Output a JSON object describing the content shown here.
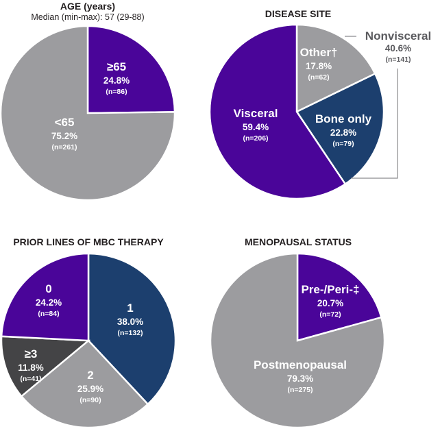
{
  "colors": {
    "purple": "#4a0599",
    "gray": "#9c9c9f",
    "navy": "#1c3f6e",
    "dark": "#444446"
  },
  "chart_data": [
    {
      "type": "pie",
      "title": "AGE (years)",
      "subtitle": "Median (min-max): 57 (29-88)",
      "slices": [
        {
          "label": "≥65",
          "percent": "24.8%",
          "n": "(n=86)",
          "value": 24.8,
          "color": "purple"
        },
        {
          "label": "<65",
          "percent": "75.2%",
          "n": "(n=261)",
          "value": 75.2,
          "color": "gray"
        }
      ]
    },
    {
      "type": "pie",
      "title": "DISEASE SITE",
      "slices": [
        {
          "label": "Other†",
          "percent": "17.8%",
          "n": "(n=62)",
          "value": 17.8,
          "color": "gray"
        },
        {
          "label": "Bone only",
          "percent": "22.8%",
          "n": "(n=79)",
          "value": 22.8,
          "color": "navy"
        },
        {
          "label": "Visceral",
          "percent": "59.4%",
          "n": "(n=206)",
          "value": 59.4,
          "color": "purple"
        }
      ],
      "group_annotation": {
        "label": "Nonvisceral",
        "percent": "40.6%",
        "n": "(n=141)",
        "value": 40.6,
        "members": [
          "Other†",
          "Bone only"
        ]
      }
    },
    {
      "type": "pie",
      "title": "PRIOR LINES OF MBC THERAPY",
      "slices": [
        {
          "label": "1",
          "percent": "38.0%",
          "n": "(n=132)",
          "value": 38.0,
          "color": "navy"
        },
        {
          "label": "2",
          "percent": "25.9%",
          "n": "(n=90)",
          "value": 25.9,
          "color": "gray"
        },
        {
          "label": "≥3",
          "percent": "11.8%",
          "n": "(n=41)",
          "value": 11.8,
          "color": "dark"
        },
        {
          "label": "0",
          "percent": "24.2%",
          "n": "(n=84)",
          "value": 24.2,
          "color": "purple"
        }
      ]
    },
    {
      "type": "pie",
      "title": "MENOPAUSAL STATUS",
      "slices": [
        {
          "label": "Pre-/Peri-‡",
          "percent": "20.7%",
          "n": "(n=72)",
          "value": 20.7,
          "color": "purple"
        },
        {
          "label": "Postmenopausal",
          "percent": "79.3%",
          "n": "(n=275)",
          "value": 79.3,
          "color": "gray"
        }
      ]
    }
  ]
}
